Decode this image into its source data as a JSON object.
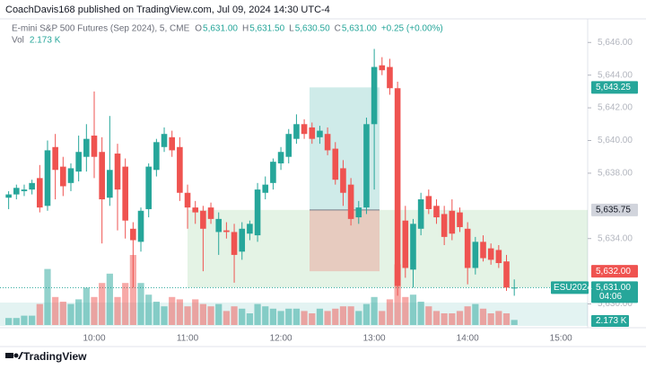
{
  "header": {
    "published": "CoachDavis168 published on TradingView.com, Jul 09, 2024 14:30 UTC-4",
    "brand": "TradingView"
  },
  "chart_data": {
    "type": "candlestick",
    "title": "E-mini S&P 500 Futures (Sep 2024), 5, CME",
    "legend": [
      {
        "key": "O",
        "value": "5,631.00"
      },
      {
        "key": "H",
        "value": "5,631.50"
      },
      {
        "key": "L",
        "value": "5,630.50"
      },
      {
        "key": "C",
        "value": "5,631.00"
      }
    ],
    "change": "+0.25 (+0.00%)",
    "volume_name": "Vol",
    "volume_label": "2.173 K",
    "up_color": "#26a69a",
    "down_color": "#ef5350",
    "categories": [
      null,
      null,
      null,
      null,
      null,
      null,
      null,
      null,
      null,
      null,
      null,
      "10:00",
      null,
      null,
      null,
      null,
      null,
      null,
      null,
      null,
      null,
      null,
      null,
      "11:00",
      null,
      null,
      null,
      null,
      null,
      null,
      null,
      null,
      null,
      null,
      null,
      "12:00",
      null,
      null,
      null,
      null,
      null,
      null,
      null,
      null,
      null,
      null,
      null,
      "13:00",
      null,
      null,
      null,
      null,
      null,
      null,
      null,
      null,
      null,
      null,
      null,
      "14:00",
      null,
      null,
      null,
      null,
      null,
      null,
      null,
      null,
      null,
      null,
      null,
      "15:00"
    ],
    "open": [
      5636.5,
      5636.7,
      5636.9,
      5637.0,
      5637.7,
      5636.0,
      5639.6,
      5638.4,
      5637.4,
      5638.1,
      5639.0,
      5640.3,
      5639.3,
      5636.5,
      5639.2,
      5638.4,
      5634.6,
      5633.8,
      5635.8,
      5638.2,
      5639.6,
      5640.2,
      5639.6,
      5636.8,
      5635.9,
      5635.7,
      5635.9,
      5634.4,
      5634.5,
      5634.4,
      5633.2,
      5634.3,
      5634.2,
      5636.8,
      5637.4,
      5638.6,
      5639.0,
      5640.1,
      5641.0,
      5640.8,
      5640.2,
      5640.4,
      5639.5,
      5638.3,
      5637.3,
      5635.3,
      5635.9,
      5641.0,
      5644.6,
      5644.5,
      5643.2,
      5635.1,
      5632.1,
      5634.6,
      5636.6,
      5636.0,
      5635.5,
      5635.7,
      5635.6,
      5634.6,
      5632.2,
      5633.8,
      5633.4,
      5633.3,
      5632.6,
      5631.0,
      null,
      null,
      null,
      null,
      null,
      null
    ],
    "high": [
      5636.9,
      5637.3,
      5637.3,
      5637.6,
      5638.5,
      5640.0,
      5640.4,
      5639.0,
      5638.6,
      5640.3,
      5641.0,
      5643.0,
      5640.2,
      5641.5,
      5639.8,
      5638.9,
      5635.0,
      5635.9,
      5638.6,
      5640.1,
      5640.8,
      5640.6,
      5640.2,
      5637.3,
      5636.3,
      5636.0,
      5636.2,
      5635.6,
      5635.0,
      5634.9,
      5635.0,
      5635.1,
      5637.4,
      5637.8,
      5638.9,
      5639.6,
      5640.7,
      5641.6,
      5641.3,
      5641.1,
      5640.9,
      5640.8,
      5639.9,
      5638.8,
      5637.7,
      5636.3,
      5641.4,
      5645.6,
      5645.1,
      5645.0,
      5643.6,
      5636.0,
      5635.2,
      5636.8,
      5637.0,
      5636.4,
      5636.0,
      5636.4,
      5635.9,
      5635.0,
      5634.1,
      5634.2,
      5633.7,
      5633.6,
      5633.0,
      5631.5,
      null,
      null,
      null,
      null,
      null,
      null
    ],
    "low": [
      5635.8,
      5636.4,
      5636.6,
      5636.7,
      5635.6,
      5635.7,
      5636.4,
      5636.6,
      5636.9,
      5637.5,
      5638.1,
      5637.7,
      5633.7,
      5636.0,
      5634.5,
      5634.0,
      5631.0,
      5633.2,
      5635.3,
      5637.8,
      5639.3,
      5639.0,
      5636.3,
      5634.6,
      5634.9,
      5632.0,
      5634.9,
      5633.0,
      5634.0,
      5631.3,
      5632.7,
      5633.9,
      5633.8,
      5636.4,
      5637.0,
      5638.2,
      5638.6,
      5639.8,
      5640.1,
      5639.8,
      5639.8,
      5639.1,
      5637.3,
      5636.0,
      5634.8,
      5634.9,
      5635.5,
      5637.0,
      5644.0,
      5642.8,
      5630.5,
      5631.6,
      5631.0,
      5634.2,
      5635.5,
      5634.9,
      5633.6,
      5633.9,
      5634.4,
      5631.2,
      5631.8,
      5632.6,
      5632.4,
      5632.2,
      5630.8,
      5630.5,
      null,
      null,
      null,
      null,
      null,
      null
    ],
    "close": [
      5636.7,
      5637.1,
      5637.0,
      5637.4,
      5635.9,
      5639.4,
      5638.2,
      5637.2,
      5638.3,
      5639.3,
      5640.1,
      5639.0,
      5636.4,
      5638.2,
      5637.0,
      5635.1,
      5633.9,
      5635.7,
      5638.4,
      5639.9,
      5640.4,
      5639.4,
      5636.8,
      5635.9,
      5635.6,
      5634.6,
      5635.2,
      5635.2,
      5634.4,
      5633.0,
      5634.6,
      5634.9,
      5637.0,
      5637.3,
      5638.7,
      5639.3,
      5640.4,
      5641.0,
      5640.4,
      5640.1,
      5640.6,
      5639.4,
      5637.6,
      5636.8,
      5635.2,
      5635.9,
      5641.0,
      5644.5,
      5644.3,
      5643.2,
      5631.1,
      5632.2,
      5634.9,
      5636.4,
      5635.8,
      5635.3,
      5634.1,
      5634.3,
      5634.7,
      5632.2,
      5633.8,
      5632.8,
      5632.7,
      5632.5,
      5631.0,
      5631.0,
      null,
      null,
      null,
      null,
      null,
      null
    ],
    "volume": [
      3,
      3,
      4,
      4,
      9,
      24,
      12,
      10,
      9,
      11,
      16,
      12,
      18,
      22,
      12,
      18,
      30,
      18,
      13,
      10,
      8,
      12,
      11,
      8,
      11,
      9,
      8,
      9,
      6,
      8,
      7,
      5,
      9,
      8,
      7,
      6,
      7,
      7,
      6,
      5,
      7,
      6,
      7,
      8,
      8,
      6,
      9,
      12,
      6,
      11,
      26,
      12,
      13,
      10,
      8,
      6,
      5,
      5,
      6,
      8,
      9,
      7,
      5,
      6,
      5,
      2.173,
      null,
      null,
      null,
      null,
      null,
      null
    ],
    "ylim": [
      5628.6,
      5646.4
    ],
    "yticks": [
      {
        "value": 5646,
        "label": "5,646.00"
      },
      {
        "value": 5644,
        "label": "5,644.00"
      },
      {
        "value": 5642,
        "label": "5,642.00"
      },
      {
        "value": 5640,
        "label": "5,640.00"
      },
      {
        "value": 5638,
        "label": "5,638.00"
      },
      {
        "value": 5634,
        "label": "5,634.00"
      },
      {
        "value": 5630,
        "label": "5,630.00"
      }
    ],
    "target": {
      "value": 5643.25,
      "label": "5,643.25"
    },
    "entry": {
      "value": 5635.75,
      "label": "5,635.75"
    },
    "stop": {
      "value": 5632.0,
      "label": "5,632.00"
    },
    "last": {
      "value": 5631.0,
      "label": "5,631.00",
      "symbol": "ESU2024",
      "countdown": "04:06"
    }
  }
}
